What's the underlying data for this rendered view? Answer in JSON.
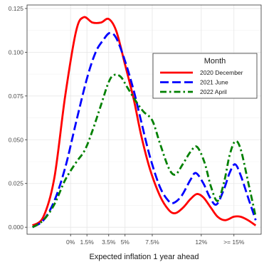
{
  "chart_data": {
    "type": "line",
    "title": "",
    "xlabel": "Expected inflation 1 year ahead",
    "ylabel": "",
    "x_ticks": [
      {
        "x": 0,
        "label": "0%"
      },
      {
        "x": 1.5,
        "label": "1.5%"
      },
      {
        "x": 3.5,
        "label": "3.5%"
      },
      {
        "x": 5,
        "label": "5%"
      },
      {
        "x": 7.5,
        "label": "7.5%"
      },
      {
        "x": 12,
        "label": "12%"
      },
      {
        "x": 15,
        "label": ">= 15%"
      }
    ],
    "xlim": [
      -4,
      17.5
    ],
    "ylim": [
      -0.004,
      0.127
    ],
    "y_ticks": [
      {
        "y": 0,
        "label": "0.000"
      },
      {
        "y": 0.025,
        "label": "0.025"
      },
      {
        "y": 0.05,
        "label": "0.050"
      },
      {
        "y": 0.075,
        "label": "0.075"
      },
      {
        "y": 0.1,
        "label": "0.100"
      },
      {
        "y": 0.125,
        "label": "0.125"
      }
    ],
    "grid": true,
    "legend": {
      "title": "Month",
      "position": "top-right"
    },
    "series": [
      {
        "name": "2020 December",
        "color": "#ff0000",
        "dash": "solid",
        "points": [
          [
            -3.5,
            0.001
          ],
          [
            -2.5,
            0.006
          ],
          [
            -1.5,
            0.028
          ],
          [
            -0.5,
            0.075
          ],
          [
            0.5,
            0.112
          ],
          [
            1.2,
            0.12
          ],
          [
            2.0,
            0.117
          ],
          [
            2.8,
            0.117
          ],
          [
            3.5,
            0.119
          ],
          [
            4.2,
            0.112
          ],
          [
            5.0,
            0.093
          ],
          [
            5.8,
            0.073
          ],
          [
            6.5,
            0.052
          ],
          [
            7.3,
            0.033
          ],
          [
            8.2,
            0.018
          ],
          [
            9.0,
            0.01
          ],
          [
            9.6,
            0.008
          ],
          [
            10.3,
            0.011
          ],
          [
            11.0,
            0.016
          ],
          [
            11.6,
            0.019
          ],
          [
            12.2,
            0.017
          ],
          [
            12.9,
            0.011
          ],
          [
            13.5,
            0.006
          ],
          [
            14.2,
            0.004
          ],
          [
            15.0,
            0.006
          ],
          [
            15.6,
            0.006
          ],
          [
            16.3,
            0.004
          ],
          [
            17.0,
            0.001
          ]
        ]
      },
      {
        "name": "2021 June",
        "color": "#0000ff",
        "dash": "long-dash",
        "points": [
          [
            -3.5,
            0.0
          ],
          [
            -2.5,
            0.004
          ],
          [
            -1.5,
            0.015
          ],
          [
            -0.5,
            0.034
          ],
          [
            0.5,
            0.06
          ],
          [
            1.5,
            0.085
          ],
          [
            2.3,
            0.1
          ],
          [
            3.0,
            0.107
          ],
          [
            3.6,
            0.111
          ],
          [
            4.2,
            0.108
          ],
          [
            5.0,
            0.095
          ],
          [
            5.8,
            0.078
          ],
          [
            6.5,
            0.06
          ],
          [
            7.3,
            0.04
          ],
          [
            8.2,
            0.023
          ],
          [
            9.0,
            0.015
          ],
          [
            9.5,
            0.014
          ],
          [
            10.2,
            0.018
          ],
          [
            11.0,
            0.027
          ],
          [
            11.5,
            0.031
          ],
          [
            12.2,
            0.025
          ],
          [
            12.8,
            0.017
          ],
          [
            13.4,
            0.013
          ],
          [
            14.1,
            0.022
          ],
          [
            14.6,
            0.031
          ],
          [
            15.1,
            0.036
          ],
          [
            15.6,
            0.03
          ],
          [
            16.3,
            0.017
          ],
          [
            17.0,
            0.004
          ]
        ]
      },
      {
        "name": "2022 April",
        "color": "#008000",
        "dash": "dash-dot",
        "points": [
          [
            -3.5,
            0.0
          ],
          [
            -2.5,
            0.004
          ],
          [
            -1.5,
            0.013
          ],
          [
            -0.5,
            0.027
          ],
          [
            0.5,
            0.037
          ],
          [
            1.3,
            0.044
          ],
          [
            2.0,
            0.055
          ],
          [
            2.8,
            0.07
          ],
          [
            3.5,
            0.083
          ],
          [
            4.0,
            0.087
          ],
          [
            4.6,
            0.086
          ],
          [
            5.2,
            0.08
          ],
          [
            6.0,
            0.072
          ],
          [
            6.7,
            0.066
          ],
          [
            7.5,
            0.061
          ],
          [
            8.2,
            0.048
          ],
          [
            9.0,
            0.034
          ],
          [
            9.6,
            0.03
          ],
          [
            10.3,
            0.036
          ],
          [
            11.0,
            0.043
          ],
          [
            11.6,
            0.046
          ],
          [
            12.3,
            0.037
          ],
          [
            12.9,
            0.023
          ],
          [
            13.5,
            0.015
          ],
          [
            14.1,
            0.026
          ],
          [
            14.6,
            0.041
          ],
          [
            15.1,
            0.049
          ],
          [
            15.6,
            0.045
          ],
          [
            16.3,
            0.026
          ],
          [
            17.0,
            0.006
          ]
        ]
      }
    ]
  }
}
